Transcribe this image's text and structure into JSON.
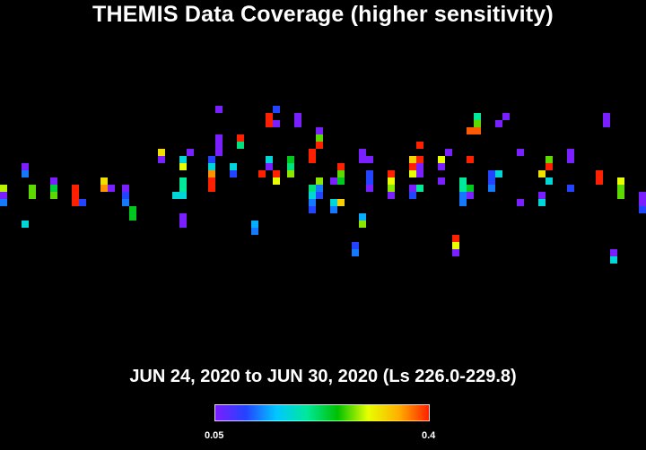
{
  "chart_data": {
    "type": "heatmap",
    "title": "THEMIS Data Coverage (higher sensitivity)",
    "subtitle": "JUN 24, 2020 to JUN 30, 2020 (Ls 226.0-229.8)",
    "colorbar": {
      "min_label": "0.05",
      "max_label": "0.4",
      "min": 0.05,
      "max": 0.4,
      "colors": [
        "#7a1fff",
        "#2244ff",
        "#00c8ff",
        "#00e89a",
        "#00c000",
        "#e8ff00",
        "#ffb000",
        "#ff2000"
      ]
    },
    "x_range": [
      0,
      90
    ],
    "y_range": [
      0,
      62
    ],
    "cells": [
      {
        "x": 0,
        "y": 33,
        "v": 0.29
      },
      {
        "x": 0,
        "y": 34,
        "v": 0.05
      },
      {
        "x": 0,
        "y": 35,
        "v": 0.12
      },
      {
        "x": 3,
        "y": 30,
        "v": 0.05
      },
      {
        "x": 3,
        "y": 31,
        "v": 0.12
      },
      {
        "x": 3,
        "y": 38,
        "v": 0.17
      },
      {
        "x": 4,
        "y": 33,
        "v": 0.27
      },
      {
        "x": 4,
        "y": 34,
        "v": 0.27
      },
      {
        "x": 7,
        "y": 32,
        "v": 0.05
      },
      {
        "x": 7,
        "y": 33,
        "v": 0.23
      },
      {
        "x": 7,
        "y": 34,
        "v": 0.27
      },
      {
        "x": 10,
        "y": 33,
        "v": 0.4
      },
      {
        "x": 10,
        "y": 34,
        "v": 0.4
      },
      {
        "x": 10,
        "y": 35,
        "v": 0.4
      },
      {
        "x": 11,
        "y": 35,
        "v": 0.1
      },
      {
        "x": 14,
        "y": 32,
        "v": 0.32
      },
      {
        "x": 14,
        "y": 33,
        "v": 0.36
      },
      {
        "x": 15,
        "y": 33,
        "v": 0.05
      },
      {
        "x": 17,
        "y": 33,
        "v": 0.05
      },
      {
        "x": 17,
        "y": 34,
        "v": 0.1
      },
      {
        "x": 17,
        "y": 35,
        "v": 0.12
      },
      {
        "x": 18,
        "y": 36,
        "v": 0.24
      },
      {
        "x": 18,
        "y": 37,
        "v": 0.24
      },
      {
        "x": 22,
        "y": 28,
        "v": 0.32
      },
      {
        "x": 22,
        "y": 29,
        "v": 0.05
      },
      {
        "x": 24,
        "y": 34,
        "v": 0.17
      },
      {
        "x": 25,
        "y": 29,
        "v": 0.17
      },
      {
        "x": 25,
        "y": 30,
        "v": 0.3
      },
      {
        "x": 25,
        "y": 32,
        "v": 0.2
      },
      {
        "x": 25,
        "y": 33,
        "v": 0.2
      },
      {
        "x": 25,
        "y": 34,
        "v": 0.17
      },
      {
        "x": 25,
        "y": 37,
        "v": 0.05
      },
      {
        "x": 25,
        "y": 38,
        "v": 0.05
      },
      {
        "x": 26,
        "y": 28,
        "v": 0.05
      },
      {
        "x": 29,
        "y": 29,
        "v": 0.1
      },
      {
        "x": 29,
        "y": 30,
        "v": 0.17
      },
      {
        "x": 29,
        "y": 31,
        "v": 0.36
      },
      {
        "x": 29,
        "y": 32,
        "v": 0.4
      },
      {
        "x": 29,
        "y": 33,
        "v": 0.4
      },
      {
        "x": 30,
        "y": 22,
        "v": 0.05
      },
      {
        "x": 30,
        "y": 26,
        "v": 0.05
      },
      {
        "x": 30,
        "y": 27,
        "v": 0.05
      },
      {
        "x": 30,
        "y": 28,
        "v": 0.05
      },
      {
        "x": 32,
        "y": 30,
        "v": 0.17
      },
      {
        "x": 32,
        "y": 31,
        "v": 0.1
      },
      {
        "x": 33,
        "y": 26,
        "v": 0.4
      },
      {
        "x": 33,
        "y": 27,
        "v": 0.21
      },
      {
        "x": 35,
        "y": 38,
        "v": 0.14
      },
      {
        "x": 35,
        "y": 39,
        "v": 0.12
      },
      {
        "x": 36,
        "y": 31,
        "v": 0.4
      },
      {
        "x": 37,
        "y": 23,
        "v": 0.4
      },
      {
        "x": 37,
        "y": 24,
        "v": 0.4
      },
      {
        "x": 37,
        "y": 29,
        "v": 0.17
      },
      {
        "x": 37,
        "y": 30,
        "v": 0.05
      },
      {
        "x": 38,
        "y": 22,
        "v": 0.1
      },
      {
        "x": 38,
        "y": 24,
        "v": 0.05
      },
      {
        "x": 38,
        "y": 31,
        "v": 0.4
      },
      {
        "x": 38,
        "y": 32,
        "v": 0.3
      },
      {
        "x": 40,
        "y": 29,
        "v": 0.24
      },
      {
        "x": 40,
        "y": 30,
        "v": 0.21
      },
      {
        "x": 40,
        "y": 31,
        "v": 0.28
      },
      {
        "x": 41,
        "y": 23,
        "v": 0.05
      },
      {
        "x": 41,
        "y": 24,
        "v": 0.05
      },
      {
        "x": 43,
        "y": 33,
        "v": 0.21
      },
      {
        "x": 43,
        "y": 34,
        "v": 0.17
      },
      {
        "x": 43,
        "y": 35,
        "v": 0.12
      },
      {
        "x": 43,
        "y": 36,
        "v": 0.1
      },
      {
        "x": 43,
        "y": 28,
        "v": 0.4
      },
      {
        "x": 43,
        "y": 29,
        "v": 0.4
      },
      {
        "x": 44,
        "y": 25,
        "v": 0.05
      },
      {
        "x": 44,
        "y": 26,
        "v": 0.27
      },
      {
        "x": 44,
        "y": 27,
        "v": 0.4
      },
      {
        "x": 44,
        "y": 32,
        "v": 0.28
      },
      {
        "x": 44,
        "y": 33,
        "v": 0.12
      },
      {
        "x": 44,
        "y": 34,
        "v": 0.1
      },
      {
        "x": 46,
        "y": 32,
        "v": 0.05
      },
      {
        "x": 46,
        "y": 35,
        "v": 0.17
      },
      {
        "x": 46,
        "y": 36,
        "v": 0.12
      },
      {
        "x": 47,
        "y": 30,
        "v": 0.4
      },
      {
        "x": 47,
        "y": 31,
        "v": 0.27
      },
      {
        "x": 47,
        "y": 32,
        "v": 0.24
      },
      {
        "x": 47,
        "y": 35,
        "v": 0.33
      },
      {
        "x": 49,
        "y": 41,
        "v": 0.1
      },
      {
        "x": 49,
        "y": 42,
        "v": 0.12
      },
      {
        "x": 50,
        "y": 28,
        "v": 0.05
      },
      {
        "x": 50,
        "y": 29,
        "v": 0.05
      },
      {
        "x": 50,
        "y": 37,
        "v": 0.14
      },
      {
        "x": 50,
        "y": 38,
        "v": 0.28
      },
      {
        "x": 51,
        "y": 29,
        "v": 0.05
      },
      {
        "x": 51,
        "y": 31,
        "v": 0.1
      },
      {
        "x": 51,
        "y": 32,
        "v": 0.1
      },
      {
        "x": 51,
        "y": 33,
        "v": 0.05
      },
      {
        "x": 54,
        "y": 31,
        "v": 0.4
      },
      {
        "x": 54,
        "y": 32,
        "v": 0.3
      },
      {
        "x": 54,
        "y": 33,
        "v": 0.28
      },
      {
        "x": 54,
        "y": 34,
        "v": 0.05
      },
      {
        "x": 57,
        "y": 29,
        "v": 0.33
      },
      {
        "x": 57,
        "y": 30,
        "v": 0.4
      },
      {
        "x": 57,
        "y": 31,
        "v": 0.3
      },
      {
        "x": 57,
        "y": 33,
        "v": 0.05
      },
      {
        "x": 57,
        "y": 34,
        "v": 0.1
      },
      {
        "x": 58,
        "y": 27,
        "v": 0.4
      },
      {
        "x": 58,
        "y": 29,
        "v": 0.4
      },
      {
        "x": 58,
        "y": 30,
        "v": 0.05
      },
      {
        "x": 58,
        "y": 31,
        "v": 0.05
      },
      {
        "x": 58,
        "y": 33,
        "v": 0.2
      },
      {
        "x": 61,
        "y": 29,
        "v": 0.3
      },
      {
        "x": 61,
        "y": 30,
        "v": 0.05
      },
      {
        "x": 61,
        "y": 32,
        "v": 0.05
      },
      {
        "x": 62,
        "y": 28,
        "v": 0.05
      },
      {
        "x": 63,
        "y": 40,
        "v": 0.4
      },
      {
        "x": 63,
        "y": 41,
        "v": 0.3
      },
      {
        "x": 63,
        "y": 42,
        "v": 0.05
      },
      {
        "x": 64,
        "y": 32,
        "v": 0.2
      },
      {
        "x": 64,
        "y": 33,
        "v": 0.2
      },
      {
        "x": 64,
        "y": 34,
        "v": 0.12
      },
      {
        "x": 64,
        "y": 35,
        "v": 0.12
      },
      {
        "x": 65,
        "y": 25,
        "v": 0.38
      },
      {
        "x": 65,
        "y": 29,
        "v": 0.4
      },
      {
        "x": 65,
        "y": 33,
        "v": 0.24
      },
      {
        "x": 65,
        "y": 34,
        "v": 0.05
      },
      {
        "x": 66,
        "y": 23,
        "v": 0.2
      },
      {
        "x": 66,
        "y": 24,
        "v": 0.27
      },
      {
        "x": 66,
        "y": 25,
        "v": 0.38
      },
      {
        "x": 68,
        "y": 31,
        "v": 0.1
      },
      {
        "x": 68,
        "y": 32,
        "v": 0.1
      },
      {
        "x": 68,
        "y": 33,
        "v": 0.12
      },
      {
        "x": 69,
        "y": 31,
        "v": 0.17
      },
      {
        "x": 69,
        "y": 24,
        "v": 0.05
      },
      {
        "x": 70,
        "y": 23,
        "v": 0.05
      },
      {
        "x": 72,
        "y": 28,
        "v": 0.05
      },
      {
        "x": 72,
        "y": 35,
        "v": 0.05
      },
      {
        "x": 75,
        "y": 31,
        "v": 0.32
      },
      {
        "x": 75,
        "y": 34,
        "v": 0.05
      },
      {
        "x": 75,
        "y": 35,
        "v": 0.17
      },
      {
        "x": 76,
        "y": 29,
        "v": 0.27
      },
      {
        "x": 76,
        "y": 30,
        "v": 0.4
      },
      {
        "x": 76,
        "y": 32,
        "v": 0.17
      },
      {
        "x": 79,
        "y": 28,
        "v": 0.05
      },
      {
        "x": 79,
        "y": 29,
        "v": 0.05
      },
      {
        "x": 79,
        "y": 33,
        "v": 0.1
      },
      {
        "x": 79,
        "y": 28,
        "v": 0.05
      },
      {
        "x": 83,
        "y": 31,
        "v": 0.4
      },
      {
        "x": 83,
        "y": 32,
        "v": 0.4
      },
      {
        "x": 84,
        "y": 23,
        "v": 0.05
      },
      {
        "x": 84,
        "y": 24,
        "v": 0.05
      },
      {
        "x": 85,
        "y": 42,
        "v": 0.05
      },
      {
        "x": 85,
        "y": 43,
        "v": 0.17
      },
      {
        "x": 86,
        "y": 32,
        "v": 0.3
      },
      {
        "x": 86,
        "y": 33,
        "v": 0.27
      },
      {
        "x": 86,
        "y": 34,
        "v": 0.27
      },
      {
        "x": 89,
        "y": 34,
        "v": 0.05
      },
      {
        "x": 89,
        "y": 35,
        "v": 0.05
      },
      {
        "x": 89,
        "y": 36,
        "v": 0.1
      }
    ]
  }
}
